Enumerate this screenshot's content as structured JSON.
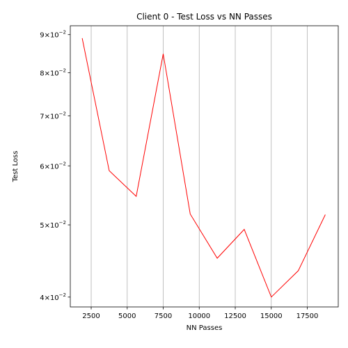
{
  "chart_data": {
    "type": "line",
    "title": "Client 0 - Test Loss vs NN Passes",
    "xlabel": "NN Passes",
    "ylabel": "Test Loss",
    "yscale": "log",
    "xlim": [
      1050,
      19650
    ],
    "ylim": [
      0.0388,
      0.0925
    ],
    "grid": "x-axis vertical gridlines",
    "x_ticks": [
      2500,
      5000,
      7500,
      10000,
      12500,
      15000,
      17500
    ],
    "x_tick_labels": [
      "2500",
      "5000",
      "7500",
      "10000",
      "12500",
      "15000",
      "17500"
    ],
    "y_ticks": [
      0.04,
      0.05,
      0.06,
      0.07,
      0.08,
      0.09
    ],
    "y_tick_labels": [
      {
        "mant": "4",
        "base": "10",
        "exp": "−2"
      },
      {
        "mant": "5",
        "base": "10",
        "exp": "−2"
      },
      {
        "mant": "6",
        "base": "10",
        "exp": "−2"
      },
      {
        "mant": "7",
        "base": "10",
        "exp": "−2"
      },
      {
        "mant": "8",
        "base": "10",
        "exp": "−2"
      },
      {
        "mant": "9",
        "base": "10",
        "exp": "−2"
      }
    ],
    "series": [
      {
        "color": "#ff0000",
        "x": [
          1875,
          3750,
          5625,
          7500,
          9375,
          11250,
          13125,
          15000,
          16875,
          18750
        ],
        "y": [
          0.089,
          0.0591,
          0.0546,
          0.0848,
          0.0517,
          0.0451,
          0.0493,
          0.04,
          0.0434,
          0.0516
        ]
      }
    ]
  }
}
